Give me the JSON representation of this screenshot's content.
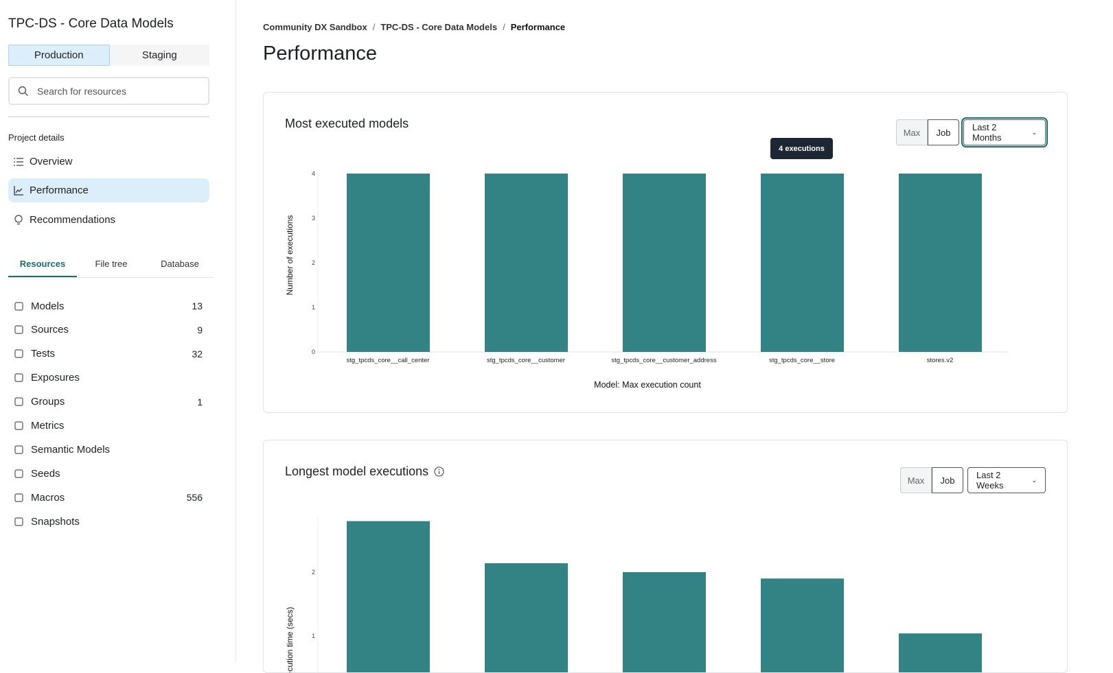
{
  "sidebar": {
    "project_title": "TPC-DS - Core Data Models",
    "env_tabs": [
      {
        "label": "Production",
        "active": true
      },
      {
        "label": "Staging",
        "active": false
      }
    ],
    "search_placeholder": "Search for resources",
    "section_label": "Project details",
    "nav": [
      {
        "label": "Overview",
        "icon": "list-icon"
      },
      {
        "label": "Performance",
        "icon": "chart-line-icon",
        "active": true
      },
      {
        "label": "Recommendations",
        "icon": "lightbulb-icon"
      }
    ],
    "tabs": [
      {
        "label": "Resources",
        "active": true
      },
      {
        "label": "File tree"
      },
      {
        "label": "Database"
      }
    ],
    "resources": [
      {
        "label": "Models",
        "count": "13",
        "icon": "cube-icon"
      },
      {
        "label": "Sources",
        "count": "9",
        "icon": "database-icon"
      },
      {
        "label": "Tests",
        "count": "32",
        "icon": "clipboard-icon"
      },
      {
        "label": "Exposures",
        "count": "",
        "icon": "gauge-icon"
      },
      {
        "label": "Groups",
        "count": "1",
        "icon": "grid-icon"
      },
      {
        "label": "Metrics",
        "count": "",
        "icon": "bar-chart-icon"
      },
      {
        "label": "Semantic Models",
        "count": "",
        "icon": "graph-icon"
      },
      {
        "label": "Seeds",
        "count": "",
        "icon": "seedling-icon"
      },
      {
        "label": "Macros",
        "count": "556",
        "icon": "file-icon"
      },
      {
        "label": "Snapshots",
        "count": "",
        "icon": "camera-icon"
      }
    ]
  },
  "breadcrumb": [
    "Community DX Sandbox",
    "TPC-DS - Core Data Models",
    "Performance"
  ],
  "page_title": "Performance",
  "accent": "#348384",
  "cards": [
    {
      "title": "Most executed models",
      "toggle": [
        "Max",
        "Job"
      ],
      "range": "Last 2 Months",
      "tooltip": "4 executions"
    },
    {
      "title": "Longest model executions",
      "toggle": [
        "Max",
        "Job"
      ],
      "range": "Last 2 Weeks"
    }
  ],
  "chart_data": [
    {
      "type": "bar",
      "title": "Most executed models",
      "ylabel": "Number of executions",
      "xlabel": "Model: Max execution count",
      "categories": [
        "stg_tpcds_core__call_center",
        "stg_tpcds_core__customer",
        "stg_tpcds_core__customer_address",
        "stg_tpcds_core__store",
        "stores.v2"
      ],
      "values": [
        4,
        4,
        4,
        4,
        4
      ],
      "ylim": [
        0,
        4
      ],
      "yticks": [
        "0",
        "1",
        "2",
        "3",
        "4"
      ],
      "grid": false
    },
    {
      "type": "bar",
      "title": "Longest model executions",
      "ylabel": "Execution time (secs)",
      "values": [
        2.8,
        2.14,
        2.0,
        1.9,
        1.04
      ],
      "yticks": [
        "1",
        "2"
      ],
      "grid": false
    }
  ]
}
